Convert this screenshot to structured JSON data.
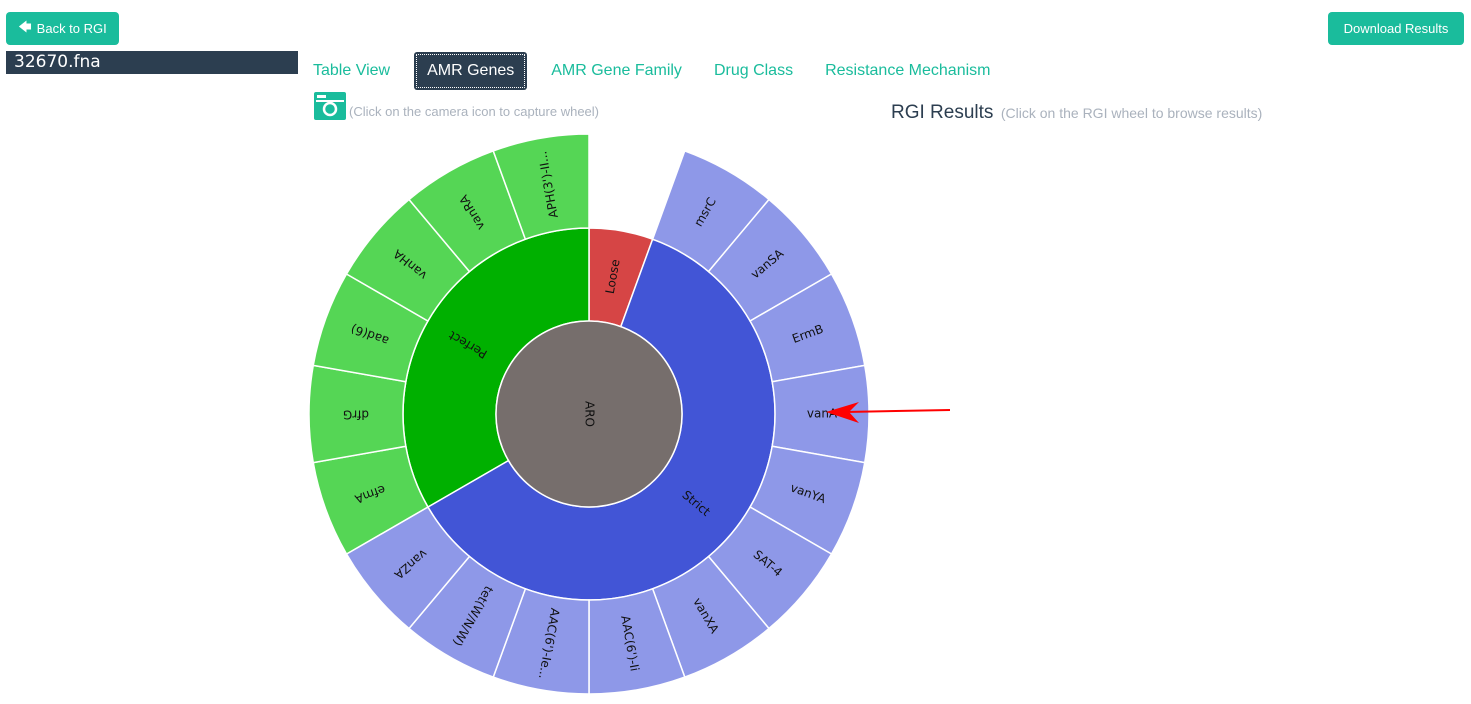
{
  "header": {
    "back_button": {
      "label": "Back to RGI",
      "icon": "arrow-left-icon"
    },
    "download_button": {
      "label": "Download Results"
    },
    "file_title": "32670.fna"
  },
  "tabs": [
    {
      "label": "Table View",
      "active": false
    },
    {
      "label": "AMR Genes",
      "active": true
    },
    {
      "label": "AMR Gene Family",
      "active": false
    },
    {
      "label": "Drug Class",
      "active": false
    },
    {
      "label": "Resistance Mechanism",
      "active": false
    }
  ],
  "camera": {
    "icon": "camera-icon",
    "hint": "(Click on the camera icon to capture wheel)"
  },
  "results": {
    "title": "RGI Results",
    "hint": "(Click on the RGI wheel to browse results)"
  },
  "colors": {
    "accent": "#1abc9c",
    "dark": "#2c3e50",
    "root": "#766e6c",
    "perfect": "#00b000",
    "perfect_child": "#55d655",
    "strict": "#4255d6",
    "strict_child": "#8e98e8",
    "loose": "#d64545",
    "arrow": "#ff0000"
  },
  "chart_data": {
    "type": "sunburst",
    "center": [
      589,
      414
    ],
    "radii": [
      93,
      186,
      280
    ],
    "root": {
      "label": "ARO"
    },
    "categories": [
      {
        "label": "Loose",
        "start_deg": 0,
        "end_deg": 20,
        "children": []
      },
      {
        "label": "Strict",
        "start_deg": 20,
        "end_deg": 240,
        "children": [
          "msrC",
          "vanSA",
          "ErmB",
          "vanA",
          "vanYA",
          "SAT-4",
          "vanXA",
          "AAC(6')-Ii",
          "AAC(6')-Ie...",
          "tet(W/N/W)",
          "vanZA"
        ]
      },
      {
        "label": "Perfect",
        "start_deg": 240,
        "end_deg": 360,
        "children": [
          "efmA",
          "dfrG",
          "aad(6)",
          "vanHA",
          "vanRA",
          "APH(3')-II..."
        ]
      }
    ],
    "highlighted": "vanA"
  }
}
